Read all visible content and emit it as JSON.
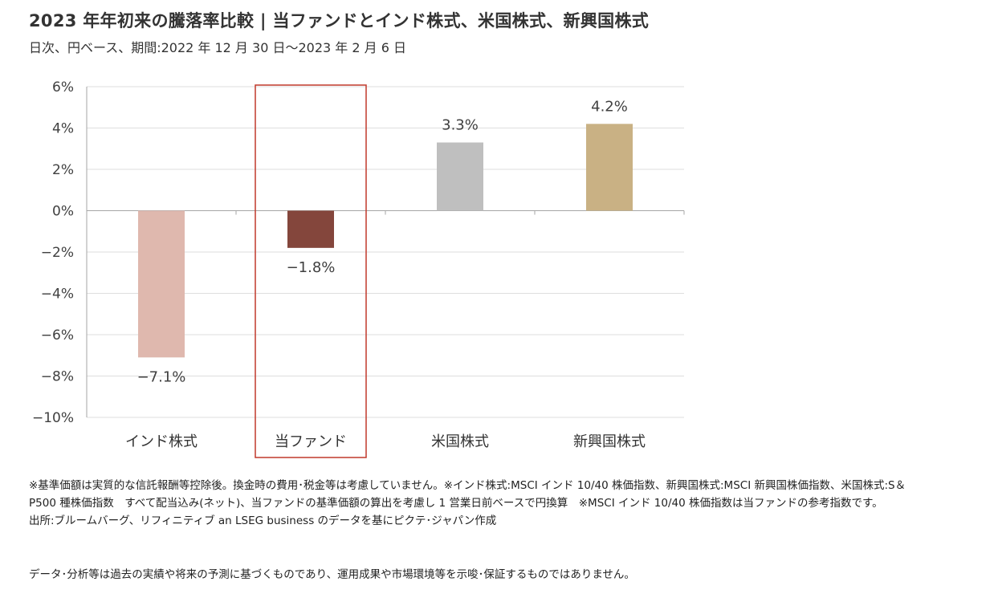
{
  "header": {
    "title": "2023 年年初来の騰落率比較 | 当ファンドとインド株式、米国株式、新興国株式",
    "subtitle": "日次、円ベース、期間:2022 年 12 月 30 日～2023 年 2 月 6 日"
  },
  "chart_data": {
    "type": "bar",
    "categories": [
      "インド株式",
      "当ファンド",
      "米国株式",
      "新興国株式"
    ],
    "values": [
      -7.1,
      -1.8,
      3.3,
      4.2
    ],
    "value_labels": [
      "−7.1%",
      "−1.8%",
      "3.3%",
      "4.2%"
    ],
    "colors": [
      "#dfb8ae",
      "#84463c",
      "#bfbfbf",
      "#c9b184"
    ],
    "highlight_category": "当ファンド",
    "highlight_color": "#c0392b",
    "ylim": [
      -10,
      6
    ],
    "yticks": [
      6,
      4,
      2,
      0,
      -2,
      -4,
      -6,
      -8,
      -10
    ],
    "ytick_labels": [
      "6%",
      "4%",
      "2%",
      "0%",
      "−2%",
      "−4%",
      "−6%",
      "−8%",
      "−10%"
    ],
    "grid": true,
    "legend": "none"
  },
  "notes": {
    "lines": [
      "※基準価額は実質的な信託報酬等控除後。換金時の費用･税金等は考慮していません。※インド株式:MSCI インド 10/40 株価指数、新興国株式:MSCI 新興国株価指数、米国株式:S＆P500 種株価指数　すべて配当込み(ネット)、当ファンドの基準価額の算出を考慮し 1 営業日前ベースで円換算　※MSCI インド 10/40 株価指数は当ファンドの参考指数です。",
      "出所:ブルームバーグ、リフィニティブ an LSEG business のデータを基にピクテ･ジャパン作成"
    ],
    "disclaimer": "データ･分析等は過去の実績や将来の予測に基づくものであり、運用成果や市場環境等を示唆･保証するものではありません。"
  }
}
